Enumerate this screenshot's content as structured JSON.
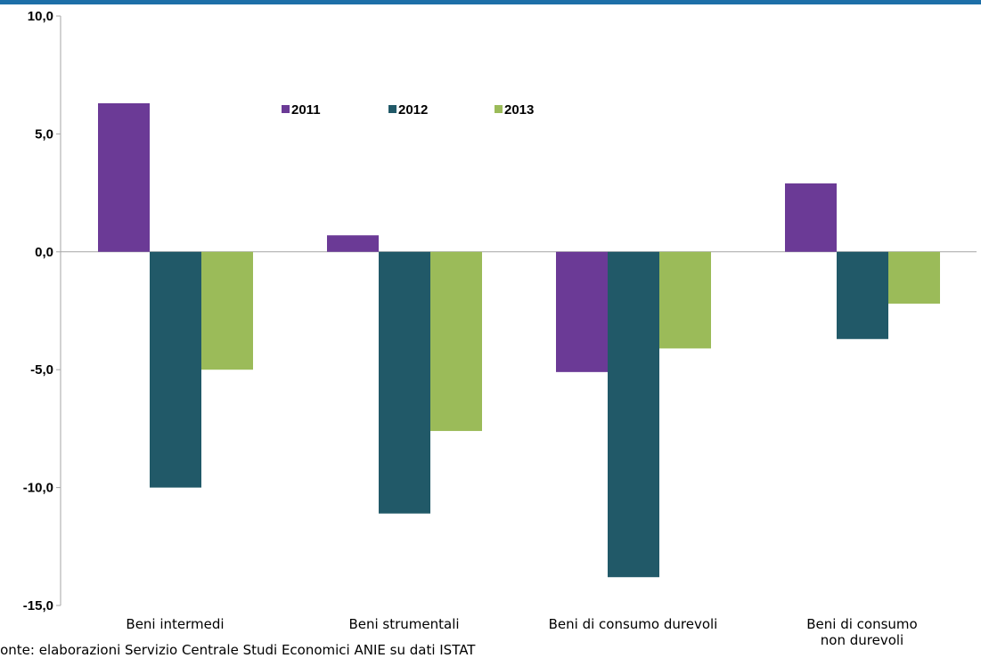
{
  "colors": {
    "top_rule": "#1d6fa8",
    "axis": "#a6a6a6",
    "series": [
      "#6b3a96",
      "#215968",
      "#9bbb59"
    ]
  },
  "source": "Fonte: elaborazioni Servizio Centrale Studi Economici ANIE su dati ISTAT",
  "chart_data": {
    "type": "bar",
    "categories": [
      [
        "Beni intermedi"
      ],
      [
        "Beni strumentali"
      ],
      [
        "Beni di consumo durevoli"
      ],
      [
        "Beni di consumo",
        "non durevoli"
      ]
    ],
    "series": [
      {
        "name": "2011",
        "values": [
          6.3,
          0.7,
          -5.1,
          2.9
        ]
      },
      {
        "name": "2012",
        "values": [
          -10.0,
          -11.1,
          -13.8,
          -3.7
        ]
      },
      {
        "name": "2013",
        "values": [
          -5.0,
          -7.6,
          -4.1,
          -2.2
        ]
      }
    ],
    "ylim": [
      -15,
      10
    ],
    "yticks": [
      10,
      5,
      0,
      -5,
      -10,
      -15
    ],
    "ytick_labels": [
      "10,0",
      "5,0",
      "0,0",
      "-5,0",
      "-10,0",
      "-15,0"
    ],
    "title": "",
    "xlabel": "",
    "ylabel": "",
    "grid": false,
    "legend": "top-center, inside plot"
  }
}
